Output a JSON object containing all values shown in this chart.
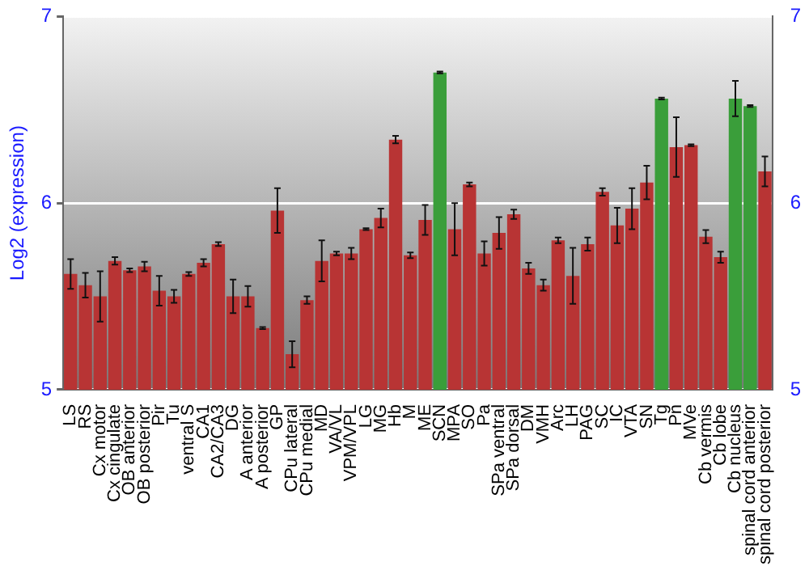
{
  "chart_data": {
    "type": "bar",
    "ylabel": "Log2 (expression)",
    "categories": [
      "LS",
      "RS",
      "Cx motor",
      "Cx cingulate",
      "OB anterior",
      "OB posterior",
      "Pir",
      "Tu",
      "ventral S",
      "CA1",
      "CA2/CA3",
      "DG",
      "A anterior",
      "A posterior",
      "GP",
      "CPu lateral",
      "CPu medial",
      "MD",
      "VA/VL",
      "VPM/VPL",
      "LG",
      "MG",
      "Hb",
      "M",
      "ME",
      "SCN",
      "MPA",
      "SO",
      "Pa",
      "SPa ventral",
      "SPa dorsal",
      "DM",
      "VMH",
      "Arc",
      "LH",
      "PAG",
      "SC",
      "IC",
      "VTA",
      "SN",
      "Tg",
      "Pn",
      "MVe",
      "Cb vermis",
      "Cb lobe",
      "Cb nucleus",
      "spinal cord anterior",
      "spinal cord posterior"
    ],
    "values": [
      5.62,
      5.56,
      5.5,
      5.69,
      5.64,
      5.66,
      5.53,
      5.5,
      5.62,
      5.68,
      5.78,
      5.5,
      5.5,
      5.33,
      5.96,
      5.19,
      5.48,
      5.69,
      5.73,
      5.73,
      5.86,
      5.92,
      6.34,
      5.72,
      5.91,
      6.7,
      5.86,
      6.1,
      5.73,
      5.84,
      5.94,
      5.65,
      5.56,
      5.8,
      5.61,
      5.78,
      6.06,
      5.88,
      5.97,
      6.11,
      6.56,
      6.3,
      6.31,
      5.82,
      5.71,
      6.56,
      6.52,
      6.17
    ],
    "errors": [
      0.08,
      0.066,
      0.135,
      0.02,
      0.01,
      0.025,
      0.08,
      0.035,
      0.01,
      0.02,
      0.01,
      0.09,
      0.055,
      0.005,
      0.12,
      0.07,
      0.02,
      0.11,
      0.01,
      0.03,
      0.005,
      0.05,
      0.02,
      0.015,
      0.08,
      0.005,
      0.14,
      0.01,
      0.065,
      0.085,
      0.025,
      0.03,
      0.03,
      0.015,
      0.15,
      0.035,
      0.02,
      0.095,
      0.11,
      0.09,
      0.005,
      0.16,
      0.005,
      0.035,
      0.03,
      0.095,
      0.005,
      0.08
    ],
    "colors": [
      "#b83434",
      "#b83434",
      "#b83434",
      "#b83434",
      "#b83434",
      "#b83434",
      "#b83434",
      "#b83434",
      "#b83434",
      "#b83434",
      "#b83434",
      "#b83434",
      "#b83434",
      "#b83434",
      "#b83434",
      "#b83434",
      "#b83434",
      "#b83434",
      "#b83434",
      "#b83434",
      "#b83434",
      "#b83434",
      "#b83434",
      "#b83434",
      "#b83434",
      "#3a9e3a",
      "#b83434",
      "#b83434",
      "#b83434",
      "#b83434",
      "#b83434",
      "#b83434",
      "#b83434",
      "#b83434",
      "#b83434",
      "#b83434",
      "#b83434",
      "#b83434",
      "#b83434",
      "#b83434",
      "#3a9e3a",
      "#b83434",
      "#b83434",
      "#b83434",
      "#b83434",
      "#3a9e3a",
      "#3a9e3a",
      "#b83434"
    ],
    "ylim": [
      5,
      7
    ],
    "yticks": [
      5,
      6,
      7
    ],
    "y2lim": [
      5,
      7
    ],
    "y2ticks": [
      5,
      6,
      7
    ],
    "grid": "y",
    "legend": false
  }
}
